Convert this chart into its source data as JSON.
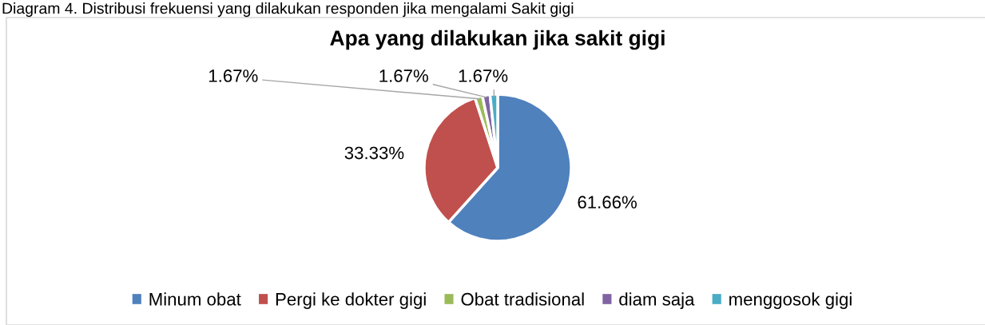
{
  "chart_data": {
    "type": "pie",
    "title": "Apa yang dilakukan jika sakit gigi",
    "categories": [
      "Minum obat",
      "Pergi ke dokter gigi",
      "Obat tradisional",
      "diam saja",
      "menggosok gigi"
    ],
    "values": [
      61.66,
      33.33,
      1.67,
      1.67,
      1.67
    ],
    "colors": [
      "#4f81bd",
      "#c0504d",
      "#9bbb59",
      "#8064a2",
      "#4bacc6"
    ],
    "value_labels": [
      "61.66%",
      "33.33%",
      "1.67%",
      "1.67%",
      "1.67%"
    ],
    "legend": "bottom",
    "annotations": [
      "Diagram 4. Distribusi frekuensi yang dilakukan responden jika mengalami Sakit gigi"
    ]
  }
}
